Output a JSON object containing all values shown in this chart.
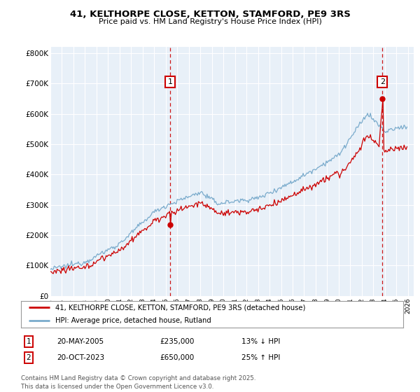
{
  "title_line1": "41, KELTHORPE CLOSE, KETTON, STAMFORD, PE9 3RS",
  "title_line2": "Price paid vs. HM Land Registry's House Price Index (HPI)",
  "ylabel_ticks": [
    "£0",
    "£100K",
    "£200K",
    "£300K",
    "£400K",
    "£500K",
    "£600K",
    "£700K",
    "£800K"
  ],
  "ytick_values": [
    0,
    100000,
    200000,
    300000,
    400000,
    500000,
    600000,
    700000,
    800000
  ],
  "ylim": [
    0,
    820000
  ],
  "xlim_start": 1995.0,
  "xlim_end": 2026.5,
  "red_color": "#cc0000",
  "blue_color": "#7aabcc",
  "plot_bg_color": "#e8f0f8",
  "bg_color": "#ffffff",
  "grid_color": "#ffffff",
  "transaction1_x": 2005.37,
  "transaction1_y": 235000,
  "transaction2_x": 2023.79,
  "transaction2_y": 650000,
  "legend_red_label": "41, KELTHORPE CLOSE, KETTON, STAMFORD, PE9 3RS (detached house)",
  "legend_blue_label": "HPI: Average price, detached house, Rutland",
  "table_row1": [
    "1",
    "20-MAY-2005",
    "£235,000",
    "13% ↓ HPI"
  ],
  "table_row2": [
    "2",
    "20-OCT-2023",
    "£650,000",
    "25% ↑ HPI"
  ],
  "footer": "Contains HM Land Registry data © Crown copyright and database right 2025.\nThis data is licensed under the Open Government Licence v3.0.",
  "xtick_years": [
    1995,
    1996,
    1997,
    1998,
    1999,
    2000,
    2001,
    2002,
    2003,
    2004,
    2005,
    2006,
    2007,
    2008,
    2009,
    2010,
    2011,
    2012,
    2013,
    2014,
    2015,
    2016,
    2017,
    2018,
    2019,
    2020,
    2021,
    2022,
    2023,
    2024,
    2025,
    2026
  ]
}
